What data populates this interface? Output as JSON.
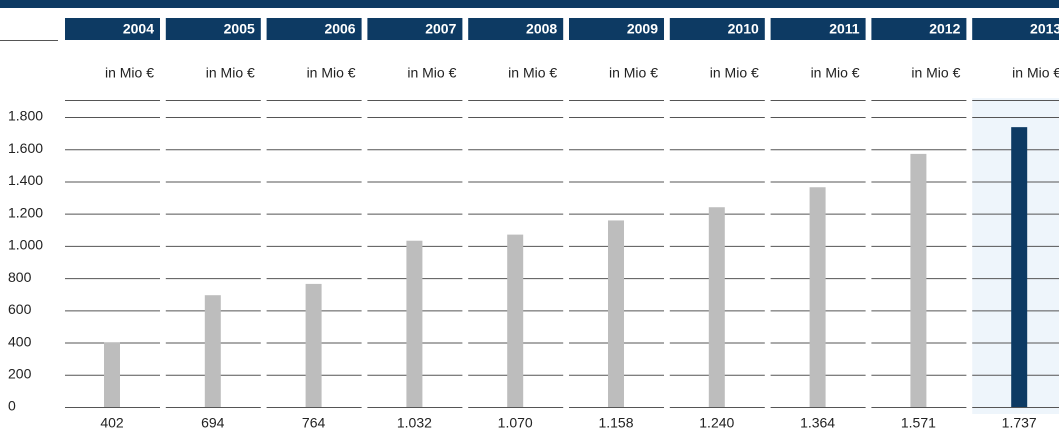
{
  "chart_data": {
    "type": "bar",
    "categories": [
      "2004",
      "2005",
      "2006",
      "2007",
      "2008",
      "2009",
      "2010",
      "2011",
      "2012",
      "2013"
    ],
    "unit": "in Mio €",
    "values": [
      402,
      694,
      764,
      1032,
      1070,
      1158,
      1240,
      1364,
      1571,
      1737
    ],
    "value_labels": [
      "402",
      "694",
      "764",
      "1.032",
      "1.070",
      "1.158",
      "1.240",
      "1.364",
      "1.571",
      "1.737"
    ],
    "colors": [
      "#bdbdbd",
      "#bdbdbd",
      "#bdbdbd",
      "#bdbdbd",
      "#bdbdbd",
      "#bdbdbd",
      "#bdbdbd",
      "#bdbdbd",
      "#bdbdbd",
      "#0d3a63"
    ],
    "ylim": [
      0,
      1800
    ],
    "yticks": [
      0,
      {
        "value": 200,
        "label": "200"
      },
      {
        "value": 400,
        "label": "400"
      },
      {
        "value": 600,
        "label": "600"
      },
      {
        "value": 800,
        "label": "800"
      },
      {
        "value": 1000,
        "label": "1.000"
      },
      {
        "value": 1200,
        "label": "1.200"
      },
      {
        "value": 1400,
        "label": "1.400"
      },
      {
        "value": 1600,
        "label": "1.600"
      },
      {
        "value": 1800,
        "label": "1.800"
      }
    ],
    "grid": true
  }
}
